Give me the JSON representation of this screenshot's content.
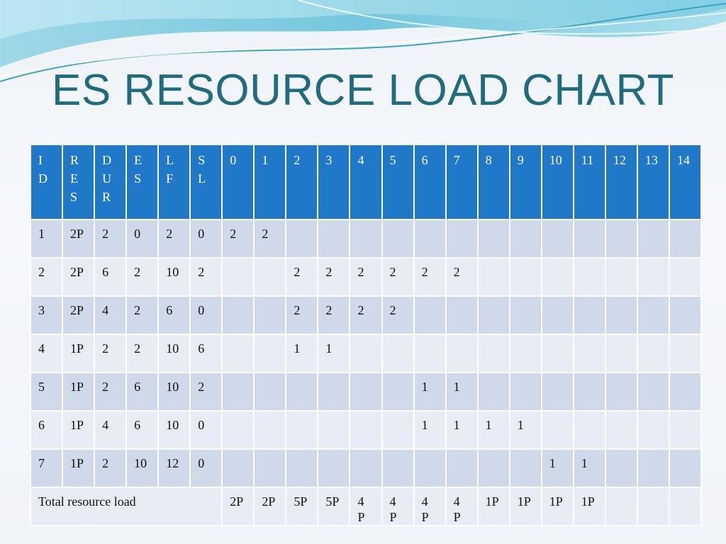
{
  "title": "ES RESOURCE LOAD CHART",
  "colors": {
    "header_bg": "#1f78c8",
    "row_dark": "#cfd9ea",
    "row_light": "#e8edf5",
    "title": "#1f6c7f"
  },
  "table": {
    "headers": [
      "I D",
      "R E S",
      "D U R",
      "E S",
      "L F",
      "S L",
      "0",
      "1",
      "2",
      "3",
      "4",
      "5",
      "6",
      "7",
      "8",
      "9",
      "10",
      "11",
      "12",
      "13",
      "14"
    ],
    "rows": [
      [
        "1",
        "2P",
        "2",
        "0",
        "2",
        "0",
        "2",
        "2",
        "",
        "",
        "",
        "",
        "",
        "",
        "",
        "",
        "",
        "",
        "",
        "",
        ""
      ],
      [
        "2",
        "2P",
        "6",
        "2",
        "10",
        "2",
        "",
        "",
        "2",
        "2",
        "2",
        "2",
        "2",
        "2",
        "",
        "",
        "",
        "",
        "",
        "",
        ""
      ],
      [
        "3",
        "2P",
        "4",
        "2",
        "6",
        "0",
        "",
        "",
        "2",
        "2",
        "2",
        "2",
        "",
        "",
        "",
        "",
        "",
        "",
        "",
        "",
        ""
      ],
      [
        "4",
        "1P",
        "2",
        "2",
        "10",
        "6",
        "",
        "",
        "1",
        "1",
        "",
        "",
        "",
        "",
        "",
        "",
        "",
        "",
        "",
        "",
        ""
      ],
      [
        "5",
        "1P",
        "2",
        "6",
        "10",
        "2",
        "",
        "",
        "",
        "",
        "",
        "",
        "1",
        "1",
        "",
        "",
        "",
        "",
        "",
        "",
        ""
      ],
      [
        "6",
        "1P",
        "4",
        "6",
        "10",
        "0",
        "",
        "",
        "",
        "",
        "",
        "",
        "1",
        "1",
        "1",
        "1",
        "",
        "",
        "",
        "",
        ""
      ],
      [
        "7",
        "1P",
        "2",
        "10",
        "12",
        "0",
        "",
        "",
        "",
        "",
        "",
        "",
        "",
        "",
        "",
        "",
        "1",
        "1",
        "",
        "",
        ""
      ]
    ],
    "total_label": "Total resource load",
    "totals": [
      "2P",
      "2P",
      "5P",
      "5P",
      "4 P",
      "4 P",
      "4 P",
      "4 P",
      "1P",
      "1P",
      "1P",
      "1P",
      "",
      "",
      ""
    ]
  }
}
